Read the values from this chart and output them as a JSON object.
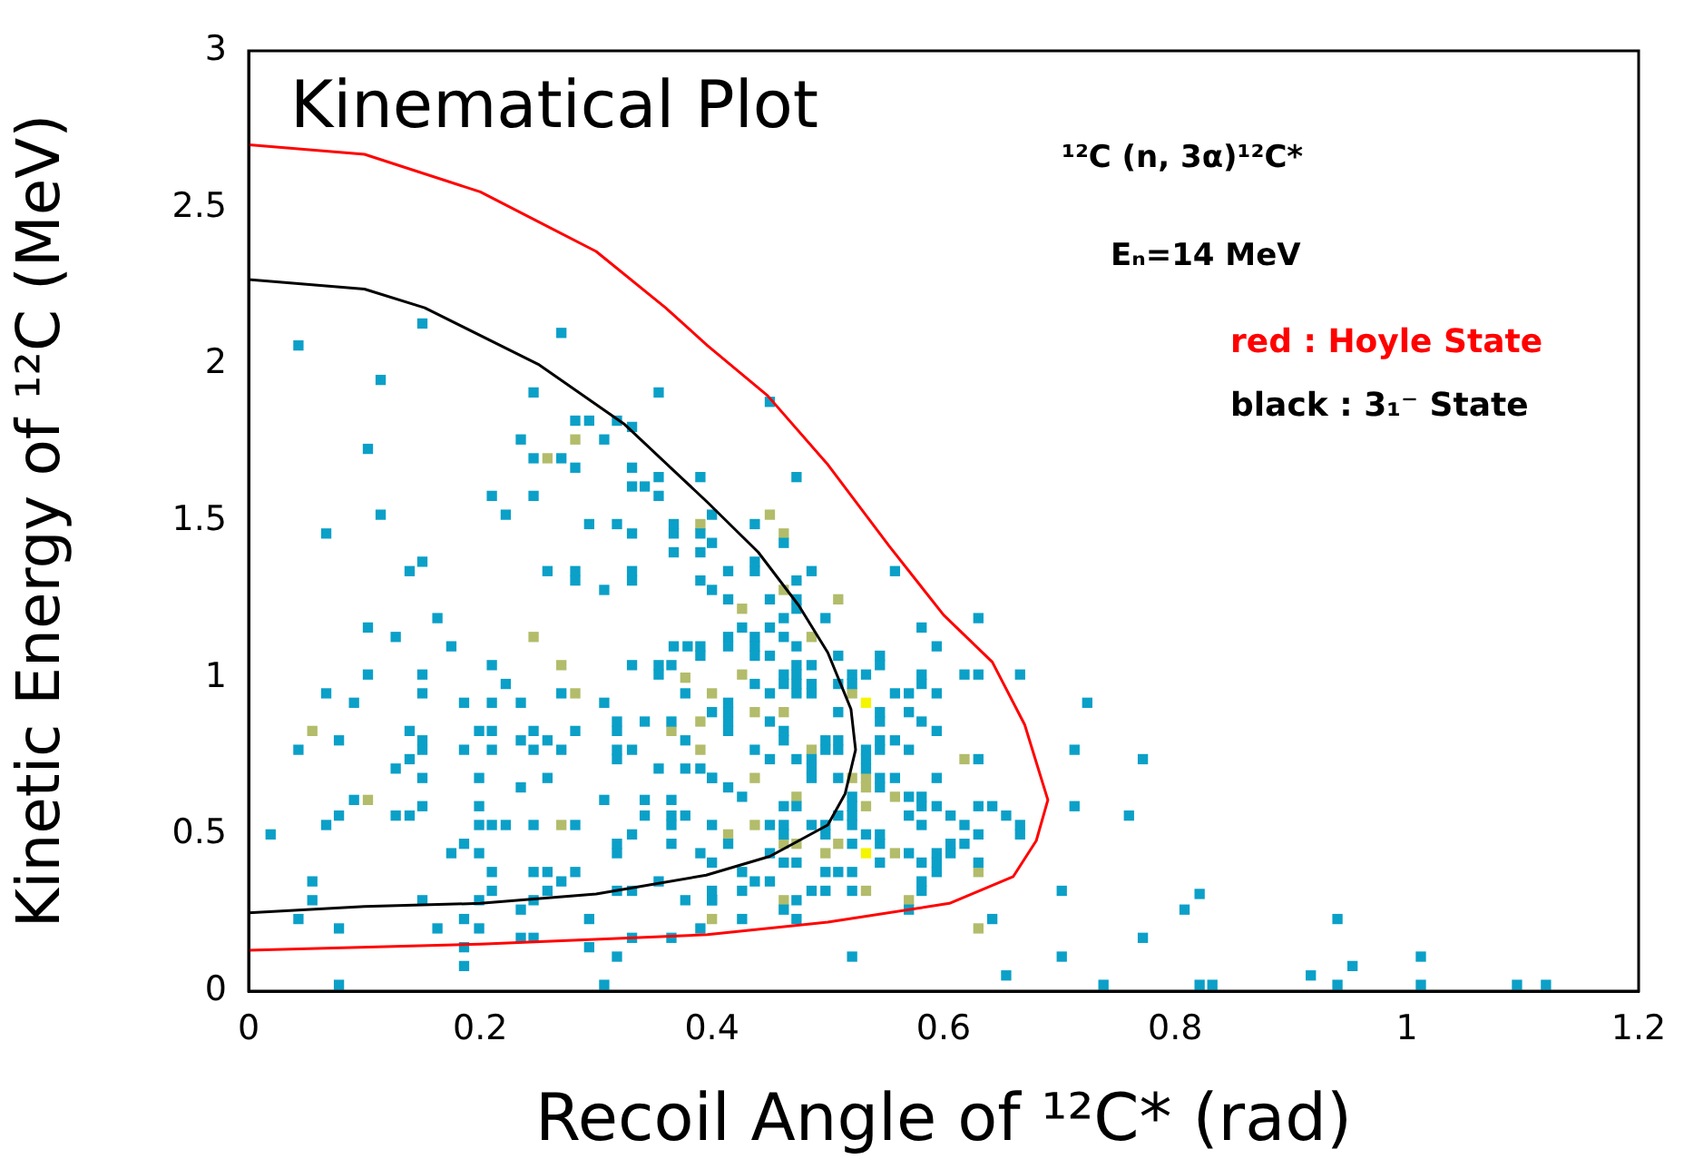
{
  "chart_data": {
    "type": "scatter",
    "xlabel": "Recoil Angle of ¹²C* (rad)",
    "ylabel": "Kinetic Energy of ¹²C (MeV)",
    "xlim": [
      0,
      1.2
    ],
    "ylim": [
      0,
      3
    ],
    "xticks": [
      0,
      0.2,
      0.4,
      0.6,
      0.8,
      1,
      1.2
    ],
    "yticks": [
      0,
      0.5,
      1,
      1.5,
      2,
      2.5,
      3
    ],
    "grid": false,
    "legend": false,
    "marker": "square",
    "annotations": [
      "Kinematical Plot",
      "¹²C (n, 3α)¹²C*",
      "Eₙ=14 MeV",
      "red : Hoyle State",
      "black : 3₁⁻ State"
    ],
    "series": [
      {
        "type": "scatter",
        "color": "#0ba0c8",
        "x": [
          0.043,
          0.15,
          0.27,
          0.114,
          0.246,
          0.354,
          0.282,
          0.294,
          0.318,
          0.331,
          0.235,
          0.307,
          0.103,
          0.246,
          0.27,
          0.282,
          0.331,
          0.354,
          0.39,
          0.331,
          0.342,
          0.21,
          0.246,
          0.354,
          0.114,
          0.222,
          0.4,
          0.067,
          0.294,
          0.318,
          0.331,
          0.367,
          0.367,
          0.39,
          0.4,
          0.367,
          0.39,
          0.15,
          0.139,
          0.258,
          0.282,
          0.282,
          0.331,
          0.331,
          0.307,
          0.39,
          0.4,
          0.103,
          0.127,
          0.163,
          0.175,
          0.367,
          0.379,
          0.39,
          0.39,
          0.45,
          0.473,
          0.437,
          0.462,
          0.414,
          0.437,
          0.437,
          0.486,
          0.558,
          0.473,
          0.414,
          0.45,
          0.473,
          0.473,
          0.498,
          0.462,
          0.426,
          0.45,
          0.581,
          0.63,
          0.414,
          0.414,
          0.437,
          0.437,
          0.437,
          0.462,
          0.473,
          0.594,
          0.509,
          0.545,
          0.45,
          0.019,
          0.21,
          0.331,
          0.354,
          0.365,
          0.354,
          0.103,
          0.15,
          0.222,
          0.067,
          0.15,
          0.27,
          0.377,
          0.091,
          0.186,
          0.21,
          0.235,
          0.307,
          0.4,
          0.139,
          0.199,
          0.21,
          0.246,
          0.282,
          0.318,
          0.318,
          0.342,
          0.365,
          0.078,
          0.15,
          0.235,
          0.258,
          0.377,
          0.043,
          0.15,
          0.139,
          0.186,
          0.21,
          0.246,
          0.27,
          0.318,
          0.331,
          0.318,
          0.127,
          0.354,
          0.377,
          0.39,
          0.15,
          0.199,
          0.258,
          0.4,
          0.235,
          0.091,
          0.307,
          0.342,
          0.365,
          0.078,
          0.127,
          0.139,
          0.15,
          0.199,
          0.342,
          0.365,
          0.377,
          0.067,
          0.199,
          0.21,
          0.222,
          0.246,
          0.282,
          0.365,
          0.331,
          0.186,
          0.318,
          0.365,
          0.175,
          0.199,
          0.318,
          0.39,
          0.4,
          0.21,
          0.246,
          0.258,
          0.282,
          0.055,
          0.27,
          0.354,
          0.21,
          0.258,
          0.318,
          0.331,
          0.055,
          0.15,
          0.199,
          0.246,
          0.377,
          0.4,
          0.235,
          0.043,
          0.186,
          0.294,
          0.078,
          0.163,
          0.199,
          0.39,
          0.235,
          0.246,
          0.331,
          0.365,
          0.186,
          0.294,
          0.318,
          0.186,
          0.078,
          0.307,
          0.473,
          0.486,
          0.545,
          0.462,
          0.473,
          0.521,
          0.533,
          0.581,
          0.618,
          0.63,
          0.666,
          0.437,
          0.462,
          0.473,
          0.486,
          0.509,
          0.521,
          0.581,
          0.45,
          0.473,
          0.486,
          0.558,
          0.57,
          0.594,
          0.414,
          0.724,
          0.414,
          0.509,
          0.545,
          0.57,
          0.414,
          0.45,
          0.545,
          0.581,
          0.414,
          0.462,
          0.594,
          0.462,
          0.498,
          0.509,
          0.545,
          0.558,
          0.437,
          0.498,
          0.509,
          0.533,
          0.545,
          0.57,
          0.713,
          0.45,
          0.473,
          0.486,
          0.533,
          0.63,
          0.772,
          0.486,
          0.533,
          0.4,
          0.486,
          0.509,
          0.545,
          0.558,
          0.594,
          0.414,
          0.545,
          0.426,
          0.521,
          0.57,
          0.581,
          0.462,
          0.473,
          0.521,
          0.581,
          0.594,
          0.63,
          0.642,
          0.713,
          0.509,
          0.521,
          0.57,
          0.606,
          0.654,
          0.76,
          0.4,
          0.45,
          0.462,
          0.486,
          0.498,
          0.521,
          0.581,
          0.618,
          0.666,
          0.462,
          0.498,
          0.533,
          0.545,
          0.63,
          0.666,
          0.414,
          0.521,
          0.545,
          0.606,
          0.618,
          0.45,
          0.57,
          0.594,
          0.606,
          0.462,
          0.473,
          0.545,
          0.581,
          0.594,
          0.63,
          0.426,
          0.498,
          0.509,
          0.521,
          0.594,
          0.437,
          0.45,
          0.581,
          0.4,
          0.426,
          0.486,
          0.498,
          0.521,
          0.581,
          0.702,
          0.4,
          0.473,
          0.462,
          0.57,
          0.426,
          0.473,
          0.642,
          0.772,
          0.521,
          0.702,
          0.654,
          0.738,
          0.821,
          0.808,
          0.821,
          0.832,
          0.94,
          0.917,
          0.953,
          0.94,
          1.012,
          1.012,
          1.095,
          1.12
        ],
        "values": [
          2.06,
          2.13,
          2.1,
          1.95,
          1.91,
          1.91,
          1.82,
          1.82,
          1.82,
          1.8,
          1.76,
          1.76,
          1.73,
          1.7,
          1.7,
          1.67,
          1.67,
          1.64,
          1.64,
          1.61,
          1.61,
          1.58,
          1.58,
          1.58,
          1.52,
          1.52,
          1.52,
          1.46,
          1.49,
          1.49,
          1.46,
          1.49,
          1.46,
          1.46,
          1.43,
          1.4,
          1.4,
          1.37,
          1.34,
          1.34,
          1.34,
          1.31,
          1.34,
          1.31,
          1.28,
          1.31,
          1.28,
          1.16,
          1.13,
          1.19,
          1.1,
          1.1,
          1.1,
          1.1,
          1.07,
          1.88,
          1.64,
          1.49,
          1.43,
          1.34,
          1.37,
          1.34,
          1.34,
          1.34,
          1.31,
          1.25,
          1.25,
          1.25,
          1.22,
          1.19,
          1.19,
          1.16,
          1.16,
          1.16,
          1.19,
          1.13,
          1.1,
          1.13,
          1.1,
          1.07,
          1.13,
          1.1,
          1.1,
          1.07,
          1.07,
          1.07,
          0.5,
          1.04,
          1.04,
          1.04,
          1.04,
          1.01,
          1.01,
          1.01,
          0.98,
          0.95,
          0.95,
          0.95,
          0.95,
          0.92,
          0.92,
          0.92,
          0.92,
          0.92,
          0.89,
          0.83,
          0.83,
          0.83,
          0.83,
          0.83,
          0.86,
          0.83,
          0.86,
          0.86,
          0.8,
          0.8,
          0.8,
          0.8,
          0.8,
          0.77,
          0.77,
          0.74,
          0.77,
          0.77,
          0.77,
          0.77,
          0.77,
          0.77,
          0.74,
          0.71,
          0.71,
          0.71,
          0.71,
          0.68,
          0.68,
          0.68,
          0.68,
          0.65,
          0.61,
          0.61,
          0.61,
          0.61,
          0.56,
          0.56,
          0.56,
          0.59,
          0.59,
          0.56,
          0.56,
          0.56,
          0.53,
          0.53,
          0.53,
          0.53,
          0.53,
          0.53,
          0.53,
          0.5,
          0.47,
          0.47,
          0.47,
          0.44,
          0.44,
          0.44,
          0.44,
          0.41,
          0.38,
          0.38,
          0.38,
          0.38,
          0.35,
          0.35,
          0.35,
          0.32,
          0.32,
          0.32,
          0.32,
          0.29,
          0.29,
          0.29,
          0.29,
          0.29,
          0.29,
          0.26,
          0.23,
          0.23,
          0.23,
          0.2,
          0.2,
          0.2,
          0.2,
          0.17,
          0.17,
          0.17,
          0.17,
          0.14,
          0.14,
          0.11,
          0.08,
          0.02,
          0.02,
          1.04,
          1.04,
          1.04,
          1.01,
          1.01,
          1.01,
          1.01,
          1.01,
          1.01,
          1.01,
          1.01,
          0.98,
          0.98,
          0.98,
          0.98,
          0.98,
          0.98,
          0.98,
          0.95,
          0.95,
          0.95,
          0.95,
          0.95,
          0.95,
          0.92,
          0.92,
          0.89,
          0.89,
          0.89,
          0.89,
          0.86,
          0.86,
          0.86,
          0.86,
          0.83,
          0.83,
          0.83,
          0.8,
          0.8,
          0.8,
          0.8,
          0.8,
          0.77,
          0.77,
          0.77,
          0.77,
          0.77,
          0.77,
          0.77,
          0.74,
          0.74,
          0.74,
          0.74,
          0.74,
          0.74,
          0.71,
          0.71,
          0.68,
          0.68,
          0.68,
          0.68,
          0.68,
          0.68,
          0.65,
          0.65,
          0.62,
          0.62,
          0.62,
          0.62,
          0.59,
          0.59,
          0.59,
          0.59,
          0.59,
          0.59,
          0.59,
          0.59,
          0.56,
          0.56,
          0.56,
          0.56,
          0.56,
          0.56,
          0.53,
          0.53,
          0.53,
          0.53,
          0.53,
          0.53,
          0.53,
          0.53,
          0.53,
          0.5,
          0.5,
          0.5,
          0.5,
          0.5,
          0.5,
          0.47,
          0.47,
          0.47,
          0.47,
          0.47,
          0.44,
          0.44,
          0.44,
          0.44,
          0.41,
          0.41,
          0.41,
          0.41,
          0.41,
          0.41,
          0.38,
          0.38,
          0.38,
          0.38,
          0.38,
          0.35,
          0.35,
          0.35,
          0.32,
          0.32,
          0.32,
          0.32,
          0.32,
          0.32,
          0.32,
          0.29,
          0.29,
          0.26,
          0.26,
          0.23,
          0.23,
          0.23,
          0.17,
          0.11,
          0.11,
          0.05,
          0.02,
          0.31,
          0.26,
          0.02,
          0.02,
          0.23,
          0.05,
          0.08,
          0.02,
          0.11,
          0.02,
          0.02,
          0.02
        ]
      },
      {
        "type": "scatter",
        "color": "#b2bc6a",
        "x": [
          0.282,
          0.258,
          0.39,
          0.246,
          0.45,
          0.462,
          0.462,
          0.509,
          0.426,
          0.486,
          0.27,
          0.377,
          0.282,
          0.4,
          0.055,
          0.365,
          0.39,
          0.39,
          0.103,
          0.27,
          0.4,
          0.426,
          0.521,
          0.437,
          0.462,
          0.486,
          0.618,
          0.437,
          0.521,
          0.533,
          0.533,
          0.473,
          0.558,
          0.533,
          0.437,
          0.414,
          0.462,
          0.473,
          0.509,
          0.498,
          0.558,
          0.63,
          0.533,
          0.462,
          0.57,
          0.63
        ],
        "values": [
          1.76,
          1.7,
          1.49,
          1.13,
          1.52,
          1.46,
          1.28,
          1.25,
          1.22,
          1.13,
          1.04,
          1.0,
          0.95,
          0.95,
          0.83,
          0.83,
          0.86,
          0.77,
          0.61,
          0.53,
          0.23,
          1.01,
          0.95,
          0.89,
          0.89,
          0.77,
          0.74,
          0.68,
          0.68,
          0.68,
          0.65,
          0.62,
          0.62,
          0.59,
          0.53,
          0.5,
          0.47,
          0.47,
          0.47,
          0.44,
          0.44,
          0.38,
          0.32,
          0.29,
          0.29,
          0.2
        ]
      },
      {
        "type": "scatter",
        "color": "#f5f500",
        "x": [
          0.533,
          0.533
        ],
        "values": [
          0.92,
          0.44
        ]
      },
      {
        "type": "line",
        "color": "#ff0000",
        "marker": "none",
        "line_style": "solid",
        "x": [
          0,
          0.1,
          0.2,
          0.3,
          0.36,
          0.396,
          0.448,
          0.5,
          0.553,
          0.6,
          0.642,
          0.67,
          0.69,
          0.68,
          0.66,
          0.605,
          0.5,
          0.396,
          0.2,
          0
        ],
        "values": [
          2.7,
          2.67,
          2.55,
          2.36,
          2.18,
          2.06,
          1.9,
          1.68,
          1.42,
          1.2,
          1.05,
          0.85,
          0.61,
          0.48,
          0.365,
          0.28,
          0.22,
          0.18,
          0.15,
          0.13
        ]
      },
      {
        "type": "line",
        "color": "#000000",
        "marker": "none",
        "line_style": "solid",
        "x": [
          0,
          0.1,
          0.152,
          0.25,
          0.324,
          0.396,
          0.44,
          0.475,
          0.5,
          0.52,
          0.524,
          0.515,
          0.5,
          0.45,
          0.395,
          0.3,
          0.2,
          0.1,
          0
        ],
        "values": [
          2.27,
          2.24,
          2.18,
          2.0,
          1.81,
          1.56,
          1.4,
          1.23,
          1.08,
          0.9,
          0.77,
          0.63,
          0.53,
          0.43,
          0.37,
          0.31,
          0.28,
          0.27,
          0.25
        ]
      }
    ]
  }
}
